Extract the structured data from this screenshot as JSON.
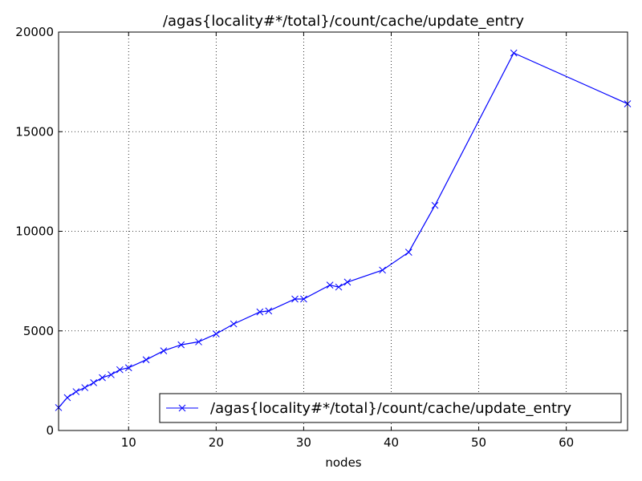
{
  "chart_data": {
    "type": "line",
    "title": "/agas{locality#*/total}/count/cache/update_entry",
    "xlabel": "nodes",
    "ylabel": "",
    "xlim": [
      2,
      67
    ],
    "ylim": [
      0,
      20000
    ],
    "xticks": [
      10,
      20,
      30,
      40,
      50,
      60
    ],
    "xtick_labels": [
      "10",
      "20",
      "30",
      "40",
      "50",
      "60"
    ],
    "yticks": [
      0,
      5000,
      10000,
      15000,
      20000
    ],
    "ytick_labels": [
      "0",
      "5000",
      "10000",
      "15000",
      "20000"
    ],
    "grid": true,
    "legend_position": "lower-right",
    "series": [
      {
        "name": "/agas{locality#*/total}/count/cache/update_entry",
        "color": "#0000ff",
        "marker": "x",
        "x": [
          2,
          3,
          4,
          5,
          6,
          7,
          8,
          9,
          10,
          12,
          14,
          16,
          18,
          20,
          22,
          25,
          26,
          29,
          30,
          33,
          34,
          35,
          39,
          42,
          45,
          54,
          67
        ],
        "y": [
          1150,
          1650,
          1950,
          2150,
          2400,
          2650,
          2800,
          3050,
          3150,
          3550,
          4000,
          4300,
          4450,
          4850,
          5350,
          5950,
          6000,
          6600,
          6600,
          7300,
          7200,
          7450,
          8050,
          8950,
          11300,
          18950,
          16400
        ]
      }
    ]
  }
}
